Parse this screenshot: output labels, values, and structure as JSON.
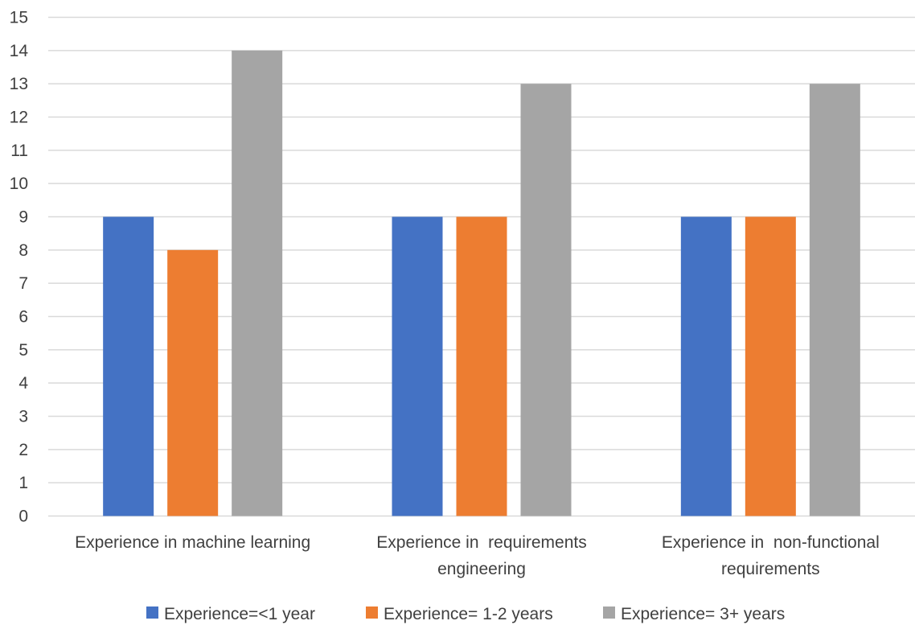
{
  "chart_data": {
    "type": "bar",
    "categories": [
      [
        "Experience in machine learning"
      ],
      [
        "Experience in  requirements",
        "engineering"
      ],
      [
        "Experience in  non-functional",
        "requirements"
      ]
    ],
    "series": [
      {
        "name": "Experience=<1 year",
        "color": "#4472C4",
        "values": [
          9,
          9,
          9
        ]
      },
      {
        "name": "Experience= 1-2 years",
        "color": "#ED7D31",
        "values": [
          8,
          9,
          9
        ]
      },
      {
        "name": "Experience= 3+ years",
        "color": "#A5A5A5",
        "values": [
          14,
          13,
          13
        ]
      }
    ],
    "ylim": [
      0,
      15
    ],
    "yticks": [
      "0",
      "1",
      "2",
      "3",
      "4",
      "5",
      "6",
      "7",
      "8",
      "9",
      "10",
      "11",
      "12",
      "13",
      "14",
      "15"
    ],
    "grid": true,
    "legend_position": "bottom",
    "title": "",
    "xlabel": "",
    "ylabel": ""
  }
}
